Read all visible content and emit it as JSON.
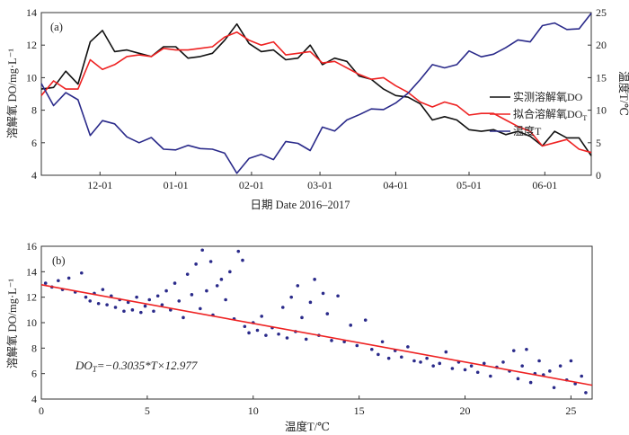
{
  "chart_data": [
    {
      "type": "line",
      "panel_label": "(a)",
      "xlabel": "日期 Date 2016–2017",
      "ylabel": "溶解氧 DO/mg·L⁻¹",
      "ylabel_right": "温度T/℃",
      "xlim": [
        "2016-11-07",
        "2017-06-20"
      ],
      "ylim": [
        4,
        14
      ],
      "ylim_right": [
        0,
        25
      ],
      "x_ticks": [
        {
          "date": "2016-12-01",
          "label": "12-01"
        },
        {
          "date": "2017-01-01",
          "label": "01-01"
        },
        {
          "date": "2017-02-01",
          "label": "02-01"
        },
        {
          "date": "2017-03-01",
          "label": "03-01"
        },
        {
          "date": "2017-04-01",
          "label": "04-01"
        },
        {
          "date": "2017-05-01",
          "label": "05-01"
        },
        {
          "date": "2017-06-01",
          "label": "06-01"
        }
      ],
      "y_ticks": [
        "4",
        "6",
        "8",
        "10",
        "12",
        "14"
      ],
      "y_ticks_right": [
        "0",
        "5",
        "10",
        "15",
        "20",
        "25"
      ],
      "legend_placement": "right",
      "grid": false,
      "x": [
        "2016-11-07",
        "2016-11-12",
        "2016-11-17",
        "2016-11-22",
        "2016-11-27",
        "2016-12-02",
        "2016-12-07",
        "2016-12-12",
        "2016-12-17",
        "2016-12-22",
        "2016-12-27",
        "2017-01-01",
        "2017-01-06",
        "2017-01-11",
        "2017-01-16",
        "2017-01-21",
        "2017-01-26",
        "2017-01-31",
        "2017-02-05",
        "2017-02-10",
        "2017-02-15",
        "2017-02-20",
        "2017-02-25",
        "2017-03-02",
        "2017-03-07",
        "2017-03-12",
        "2017-03-17",
        "2017-03-22",
        "2017-03-27",
        "2017-04-01",
        "2017-04-06",
        "2017-04-11",
        "2017-04-16",
        "2017-04-21",
        "2017-04-26",
        "2017-05-01",
        "2017-05-06",
        "2017-05-11",
        "2017-05-16",
        "2017-05-21",
        "2017-05-26",
        "2017-05-31",
        "2017-06-05",
        "2017-06-10",
        "2017-06-15",
        "2017-06-20"
      ],
      "series": [
        {
          "name": "实测溶解氧DO",
          "axis": "left",
          "color": "#111111",
          "values": [
            9.3,
            9.4,
            10.4,
            9.6,
            12.2,
            12.9,
            11.6,
            11.7,
            11.5,
            11.3,
            11.9,
            11.9,
            11.2,
            11.3,
            11.5,
            12.3,
            13.3,
            12.1,
            11.6,
            11.7,
            11.1,
            11.2,
            12.0,
            10.8,
            11.2,
            11.0,
            10.1,
            9.9,
            9.3,
            8.9,
            8.8,
            8.4,
            7.4,
            7.6,
            7.4,
            6.8,
            6.7,
            6.8,
            6.5,
            6.7,
            6.4,
            5.8,
            6.7,
            6.3,
            6.3,
            5.2
          ]
        },
        {
          "name": "拟合溶解氧DO",
          "name_sub": "T",
          "axis": "left",
          "color": "#ee2222",
          "values": [
            8.9,
            9.8,
            9.3,
            9.3,
            11.1,
            10.5,
            10.8,
            11.3,
            11.4,
            11.3,
            11.8,
            11.7,
            11.7,
            11.8,
            11.9,
            12.5,
            12.8,
            12.3,
            12.0,
            12.2,
            11.4,
            11.5,
            11.6,
            10.9,
            11.0,
            10.6,
            10.2,
            9.9,
            10.0,
            9.5,
            9.1,
            8.5,
            8.2,
            8.5,
            8.3,
            7.7,
            7.8,
            7.8,
            7.4,
            7.0,
            6.7,
            5.8,
            6.0,
            6.2,
            5.6,
            5.4
          ]
        },
        {
          "name": "温度T",
          "axis": "right",
          "color": "#2a2a8a",
          "values": [
            14.1,
            10.7,
            12.7,
            11.6,
            6.1,
            8.4,
            7.9,
            5.9,
            5.0,
            5.8,
            4.0,
            3.9,
            4.6,
            4.1,
            4.0,
            3.4,
            0.3,
            2.6,
            3.2,
            2.4,
            5.2,
            4.9,
            3.8,
            7.4,
            6.8,
            8.5,
            9.3,
            10.2,
            10.1,
            11.1,
            12.6,
            14.7,
            17.0,
            16.5,
            17.0,
            19.1,
            18.2,
            18.6,
            19.6,
            20.8,
            20.5,
            23.0,
            23.4,
            22.4,
            22.5,
            24.9
          ]
        }
      ]
    },
    {
      "type": "scatter",
      "panel_label": "(b)",
      "xlabel": "温度T/℃",
      "ylabel": "溶解氧 DO/mg·L⁻¹",
      "xlim": [
        0,
        26
      ],
      "ylim": [
        4,
        16
      ],
      "x_ticks": [
        "0",
        "5",
        "10",
        "15",
        "20",
        "25"
      ],
      "y_ticks": [
        "4",
        "6",
        "8",
        "10",
        "12",
        "14",
        "16"
      ],
      "grid": false,
      "point_color": "#2a2a8a",
      "fit_color": "#ee2222",
      "annotation": {
        "prefix": "DO",
        "sub": "T",
        "rest": "=−0.3035*T×12.977"
      },
      "fit": {
        "slope": -0.3035,
        "intercept": 12.977
      },
      "points": [
        [
          0.2,
          13.1
        ],
        [
          0.5,
          12.8
        ],
        [
          0.8,
          13.3
        ],
        [
          1.0,
          12.6
        ],
        [
          1.3,
          13.5
        ],
        [
          1.6,
          12.4
        ],
        [
          1.9,
          13.9
        ],
        [
          2.1,
          12.0
        ],
        [
          2.3,
          11.7
        ],
        [
          2.5,
          12.3
        ],
        [
          2.7,
          11.5
        ],
        [
          2.9,
          12.6
        ],
        [
          3.1,
          11.4
        ],
        [
          3.3,
          12.1
        ],
        [
          3.5,
          11.2
        ],
        [
          3.7,
          11.8
        ],
        [
          3.9,
          10.9
        ],
        [
          4.1,
          11.6
        ],
        [
          4.3,
          11.0
        ],
        [
          4.5,
          12.0
        ],
        [
          4.7,
          10.8
        ],
        [
          4.9,
          11.3
        ],
        [
          5.1,
          11.8
        ],
        [
          5.3,
          10.9
        ],
        [
          5.5,
          12.1
        ],
        [
          5.7,
          11.4
        ],
        [
          5.9,
          12.5
        ],
        [
          6.1,
          11.0
        ],
        [
          6.3,
          13.1
        ],
        [
          6.5,
          11.7
        ],
        [
          6.7,
          10.4
        ],
        [
          6.9,
          13.8
        ],
        [
          7.1,
          12.2
        ],
        [
          7.3,
          14.6
        ],
        [
          7.5,
          11.1
        ],
        [
          7.6,
          15.7
        ],
        [
          7.8,
          12.5
        ],
        [
          8.0,
          14.8
        ],
        [
          8.1,
          10.6
        ],
        [
          8.3,
          12.9
        ],
        [
          8.5,
          13.4
        ],
        [
          8.7,
          11.8
        ],
        [
          8.9,
          14.0
        ],
        [
          9.1,
          10.3
        ],
        [
          9.3,
          15.6
        ],
        [
          9.5,
          14.9
        ],
        [
          9.6,
          9.7
        ],
        [
          9.8,
          9.2
        ],
        [
          10.0,
          10.0
        ],
        [
          10.2,
          9.4
        ],
        [
          10.4,
          10.5
        ],
        [
          10.6,
          9.0
        ],
        [
          10.9,
          9.6
        ],
        [
          11.2,
          9.1
        ],
        [
          11.4,
          11.2
        ],
        [
          11.6,
          8.8
        ],
        [
          11.8,
          12.0
        ],
        [
          12.0,
          9.3
        ],
        [
          12.1,
          12.9
        ],
        [
          12.3,
          10.4
        ],
        [
          12.5,
          8.7
        ],
        [
          12.7,
          11.6
        ],
        [
          12.9,
          13.4
        ],
        [
          13.1,
          9.0
        ],
        [
          13.3,
          12.3
        ],
        [
          13.5,
          10.7
        ],
        [
          13.7,
          8.6
        ],
        [
          14.0,
          12.1
        ],
        [
          14.3,
          8.5
        ],
        [
          14.6,
          9.8
        ],
        [
          14.9,
          8.2
        ],
        [
          15.3,
          10.2
        ],
        [
          15.6,
          7.9
        ],
        [
          15.9,
          7.5
        ],
        [
          16.1,
          8.5
        ],
        [
          16.4,
          7.2
        ],
        [
          16.7,
          7.8
        ],
        [
          17.0,
          7.3
        ],
        [
          17.3,
          8.1
        ],
        [
          17.6,
          7.0
        ],
        [
          17.9,
          6.9
        ],
        [
          18.2,
          7.2
        ],
        [
          18.5,
          6.6
        ],
        [
          18.8,
          6.8
        ],
        [
          19.1,
          7.7
        ],
        [
          19.4,
          6.4
        ],
        [
          19.7,
          6.9
        ],
        [
          20.0,
          6.3
        ],
        [
          20.3,
          6.6
        ],
        [
          20.6,
          6.1
        ],
        [
          20.9,
          6.8
        ],
        [
          21.2,
          5.8
        ],
        [
          21.5,
          6.5
        ],
        [
          21.8,
          6.9
        ],
        [
          22.1,
          6.2
        ],
        [
          22.3,
          7.8
        ],
        [
          22.5,
          5.6
        ],
        [
          22.7,
          6.6
        ],
        [
          22.9,
          7.9
        ],
        [
          23.1,
          5.3
        ],
        [
          23.3,
          6.0
        ],
        [
          23.5,
          7.0
        ],
        [
          23.7,
          5.9
        ],
        [
          24.0,
          6.2
        ],
        [
          24.2,
          4.9
        ],
        [
          24.5,
          6.6
        ],
        [
          24.8,
          5.5
        ],
        [
          25.0,
          7.0
        ],
        [
          25.2,
          5.2
        ],
        [
          25.5,
          5.8
        ],
        [
          25.7,
          4.5
        ]
      ]
    }
  ]
}
